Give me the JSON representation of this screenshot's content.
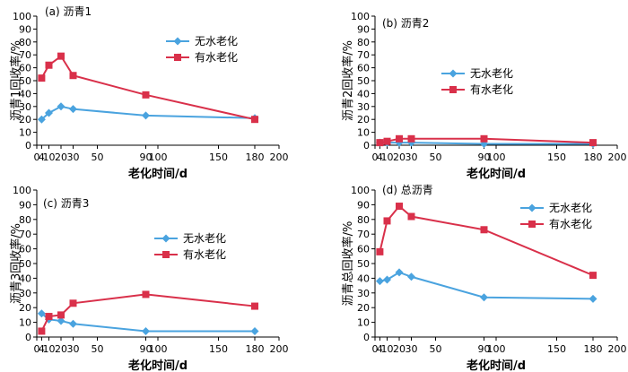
{
  "chart_data": [
    {
      "type": "line",
      "title": "(a) 沥青1",
      "xlabel": "老化时间/d",
      "ylabel": "沥青1回收率/%",
      "xlim": [
        0,
        200
      ],
      "ylim": [
        0,
        100
      ],
      "xticks": [
        0,
        4,
        10,
        20,
        30,
        50,
        90,
        100,
        150,
        180,
        200
      ],
      "xtick_labels": [
        "0",
        "4",
        "10",
        "20",
        "30",
        "50",
        "90",
        "100",
        "150",
        "180",
        "200"
      ],
      "yticks": [
        0,
        10,
        20,
        30,
        40,
        50,
        60,
        70,
        80,
        90,
        100
      ],
      "legend_position": "top-right",
      "series": [
        {
          "name": "无水老化",
          "color": "#4aa3df",
          "marker": "diamond",
          "x": [
            4,
            10,
            20,
            30,
            90,
            180
          ],
          "values": [
            20,
            25,
            30,
            28,
            23,
            21
          ]
        },
        {
          "name": "有水老化",
          "color": "#d9304a",
          "marker": "square",
          "x": [
            4,
            10,
            20,
            30,
            90,
            180
          ],
          "values": [
            52,
            62,
            69,
            54,
            39,
            20
          ]
        }
      ]
    },
    {
      "type": "line",
      "title": "(b) 沥青2",
      "xlabel": "老化时间/d",
      "ylabel": "沥青2回收率/%",
      "xlim": [
        0,
        200
      ],
      "ylim": [
        0,
        100
      ],
      "xticks": [
        0,
        4,
        10,
        20,
        30,
        50,
        90,
        100,
        150,
        180,
        200
      ],
      "xtick_labels": [
        "0",
        "4",
        "10",
        "20",
        "30",
        "50",
        "90",
        "100",
        "150",
        "180",
        "200"
      ],
      "yticks": [
        0,
        10,
        20,
        30,
        40,
        50,
        60,
        70,
        80,
        90,
        100
      ],
      "legend_position": "center-right",
      "series": [
        {
          "name": "无水老化",
          "color": "#4aa3df",
          "marker": "diamond",
          "x": [
            4,
            10,
            20,
            30,
            90,
            180
          ],
          "values": [
            2,
            2,
            2,
            2,
            1,
            1
          ]
        },
        {
          "name": "有水老化",
          "color": "#d9304a",
          "marker": "square",
          "x": [
            4,
            10,
            20,
            30,
            90,
            180
          ],
          "values": [
            2,
            3,
            5,
            5,
            5,
            2
          ]
        }
      ]
    },
    {
      "type": "line",
      "title": "(c) 沥青3",
      "xlabel": "老化时间/d",
      "ylabel": "沥青3回收率/%",
      "xlim": [
        0,
        200
      ],
      "ylim": [
        0,
        100
      ],
      "xticks": [
        0,
        4,
        10,
        20,
        30,
        50,
        90,
        100,
        150,
        180,
        200
      ],
      "xtick_labels": [
        "0",
        "4",
        "10",
        "20",
        "30",
        "50",
        "90",
        "100",
        "150",
        "180",
        "200"
      ],
      "yticks": [
        0,
        10,
        20,
        30,
        40,
        50,
        60,
        70,
        80,
        90,
        100
      ],
      "legend_position": "center-right",
      "series": [
        {
          "name": "无水老化",
          "color": "#4aa3df",
          "marker": "diamond",
          "x": [
            4,
            10,
            20,
            30,
            90,
            180
          ],
          "values": [
            16,
            12,
            11,
            9,
            4,
            4
          ]
        },
        {
          "name": "有水老化",
          "color": "#d9304a",
          "marker": "square",
          "x": [
            4,
            10,
            20,
            30,
            90,
            180
          ],
          "values": [
            4,
            14,
            15,
            23,
            29,
            21
          ]
        }
      ]
    },
    {
      "type": "line",
      "title": "(d) 总沥青",
      "xlabel": "老化时间/d",
      "ylabel": "沥青总回收率/%",
      "xlim": [
        0,
        200
      ],
      "ylim": [
        0,
        100
      ],
      "xticks": [
        0,
        4,
        10,
        20,
        30,
        50,
        90,
        100,
        150,
        180,
        200
      ],
      "xtick_labels": [
        "0",
        "4",
        "10",
        "20",
        "30",
        "50",
        "90",
        "100",
        "150",
        "180",
        "200"
      ],
      "yticks": [
        0,
        10,
        20,
        30,
        40,
        50,
        60,
        70,
        80,
        90,
        100
      ],
      "legend_position": "top-right",
      "series": [
        {
          "name": "无水老化",
          "color": "#4aa3df",
          "marker": "diamond",
          "x": [
            4,
            10,
            20,
            30,
            90,
            180
          ],
          "values": [
            38,
            39,
            44,
            41,
            27,
            26
          ]
        },
        {
          "name": "有水老化",
          "color": "#d9304a",
          "marker": "square",
          "x": [
            4,
            10,
            20,
            30,
            90,
            180
          ],
          "values": [
            58,
            79,
            89,
            82,
            73,
            42
          ]
        }
      ]
    }
  ]
}
